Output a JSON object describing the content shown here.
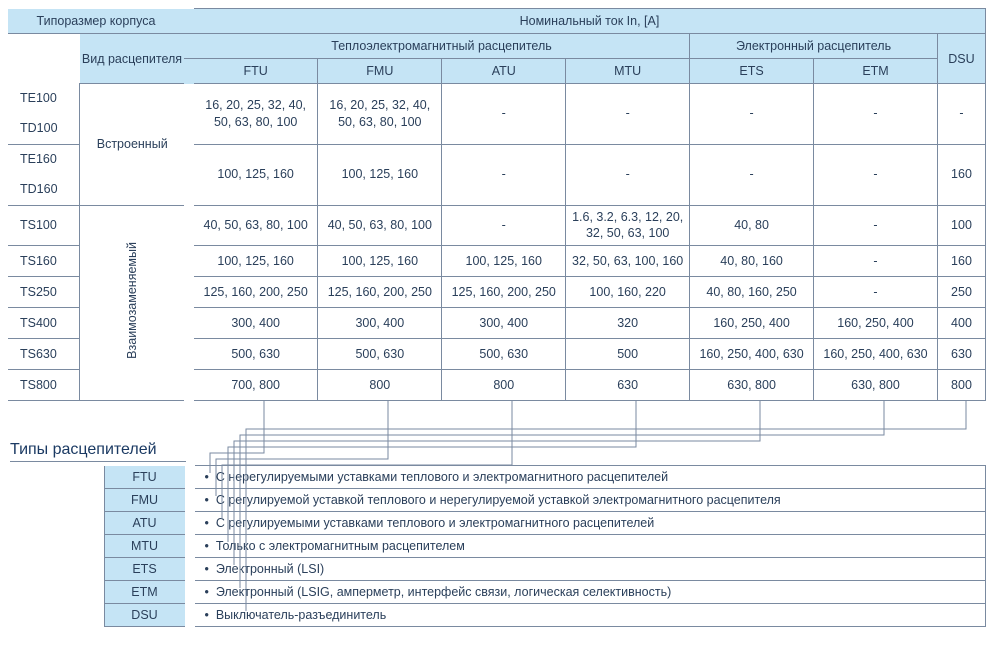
{
  "colors": {
    "header_bg": "#c5e4f5",
    "border": "#7a8aa0",
    "text": "#2a3f5a"
  },
  "main": {
    "h_frame": "Типоразмер корпуса",
    "h_trip": "Вид расцепителя",
    "h_current": "Номинальный ток In, [A]",
    "h_thermo": "Теплоэлектромагнитный расцепитель",
    "h_electronic": "Электронный расцепитель",
    "cols": {
      "ftu": "FTU",
      "fmu": "FMU",
      "atu": "ATU",
      "mtu": "MTU",
      "ets": "ETS",
      "etm": "ETM",
      "dsu": "DSU"
    },
    "trip_builtin": "Встроенный",
    "trip_inter": "Взаимозаменяемый",
    "frames": [
      "TE100",
      "TD100",
      "TE160",
      "TD160",
      "TS100",
      "TS160",
      "TS250",
      "TS400",
      "TS630",
      "TS800"
    ],
    "rows": [
      {
        "ftu": "16, 20, 25, 32, 40, 50, 63, 80, 100",
        "fmu": "16, 20, 25, 32, 40, 50, 63, 80, 100",
        "atu": "-",
        "mtu": "-",
        "ets": "-",
        "etm": "-",
        "dsu": "-"
      },
      {
        "ftu": "100, 125, 160",
        "fmu": "100, 125, 160",
        "atu": "-",
        "mtu": "-",
        "ets": "-",
        "etm": "-",
        "dsu": "160"
      },
      {
        "ftu": "40, 50, 63, 80, 100",
        "fmu": "40, 50, 63, 80, 100",
        "atu": "-",
        "mtu": "1.6, 3.2, 6.3, 12, 20, 32, 50, 63, 100",
        "ets": "40, 80",
        "etm": "-",
        "dsu": "100"
      },
      {
        "ftu": "100, 125, 160",
        "fmu": "100, 125, 160",
        "atu": "100, 125, 160",
        "mtu": "32, 50, 63, 100, 160",
        "ets": "40, 80, 160",
        "etm": "-",
        "dsu": "160"
      },
      {
        "ftu": "125, 160, 200, 250",
        "fmu": "125, 160, 200, 250",
        "atu": "125, 160, 200, 250",
        "mtu": "100, 160, 220",
        "ets": "40, 80, 160, 250",
        "etm": "-",
        "dsu": "250"
      },
      {
        "ftu": "300, 400",
        "fmu": "300, 400",
        "atu": "300, 400",
        "mtu": "320",
        "ets": "160, 250, 400",
        "etm": "160, 250, 400",
        "dsu": "400"
      },
      {
        "ftu": "500, 630",
        "fmu": "500, 630",
        "atu": "500, 630",
        "mtu": "500",
        "ets": "160, 250, 400, 630",
        "etm": "160, 250, 400, 630",
        "dsu": "630"
      },
      {
        "ftu": "700, 800",
        "fmu": "800",
        "atu": "800",
        "mtu": "630",
        "ets": "630, 800",
        "etm": "630, 800",
        "dsu": "800"
      }
    ]
  },
  "types": {
    "title": "Типы расцепителей",
    "rows": [
      {
        "code": "FTU",
        "desc": "С нерегулируемыми уставками теплового и электромагнитного расцепителей"
      },
      {
        "code": "FMU",
        "desc": "С регулируемой уставкой теплового и нерегулируемой уставкой электромагнитного расцепителя"
      },
      {
        "code": "ATU",
        "desc": "С регулируемыми уставками теплового и электромагнитного расцепителей"
      },
      {
        "code": "MTU",
        "desc": "Только с электромагнитным расцепителем"
      },
      {
        "code": "ETS",
        "desc": "Электронный (LSI)"
      },
      {
        "code": "ETM",
        "desc": "Электронный (LSIG, амперметр, интерфейс связи, логическая селективность)"
      },
      {
        "code": "DSU",
        "desc": "Выключатель-разъединитель"
      }
    ]
  }
}
